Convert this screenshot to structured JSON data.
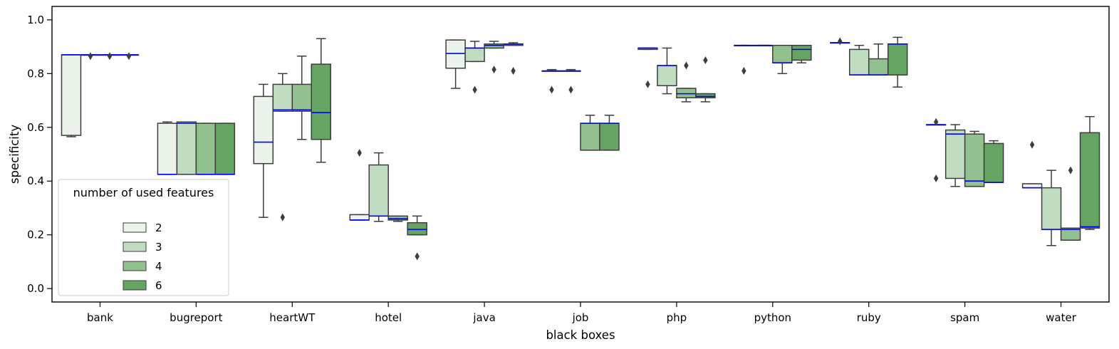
{
  "chart_data": {
    "type": "box",
    "xlabel": "black boxes",
    "ylabel": "specificity",
    "ylim": [
      -0.05,
      1.05
    ],
    "yticks": [
      0.0,
      0.2,
      0.4,
      0.6,
      0.8,
      1.0
    ],
    "ytick_labels": [
      "0.0",
      "0.2",
      "0.4",
      "0.6",
      "0.8",
      "1.0"
    ],
    "grid": false,
    "categories": [
      "bank",
      "bugreport",
      "heartWT",
      "hotel",
      "java",
      "job",
      "php",
      "python",
      "ruby",
      "spam",
      "water"
    ],
    "legend": {
      "title": "number of used features",
      "placement": "lower-left",
      "entries": [
        "2",
        "3",
        "4",
        "6"
      ]
    },
    "colors": {
      "2": "#ebf3ea",
      "3": "#c0ddc2",
      "4": "#93c08f",
      "6": "#65a463",
      "median": "#0000ff",
      "outline": "#3d3d3d"
    },
    "series": [
      {
        "name": "2",
        "boxes": [
          {
            "lw": 0.565,
            "q1": 0.57,
            "med": 0.87,
            "q3": 0.87,
            "uw": 0.87,
            "fliers": []
          },
          {
            "lw": 0.425,
            "q1": 0.425,
            "med": 0.425,
            "q3": 0.615,
            "uw": 0.62,
            "fliers": []
          },
          {
            "lw": 0.265,
            "q1": 0.465,
            "med": 0.545,
            "q3": 0.715,
            "uw": 0.76,
            "fliers": []
          },
          {
            "lw": 0.255,
            "q1": 0.255,
            "med": 0.255,
            "q3": 0.275,
            "uw": 0.275,
            "fliers": [
              0.505
            ]
          },
          {
            "lw": 0.745,
            "q1": 0.82,
            "med": 0.875,
            "q3": 0.925,
            "uw": 0.925,
            "fliers": []
          },
          {
            "lw": 0.81,
            "q1": 0.81,
            "med": 0.81,
            "q3": 0.81,
            "uw": 0.815,
            "fliers": [
              0.74
            ]
          },
          {
            "lw": 0.89,
            "q1": 0.89,
            "med": 0.895,
            "q3": 0.895,
            "uw": 0.895,
            "fliers": [
              0.76
            ]
          },
          {
            "lw": 0.905,
            "q1": 0.905,
            "med": 0.905,
            "q3": 0.905,
            "uw": 0.905,
            "fliers": [
              0.81
            ]
          },
          {
            "lw": 0.915,
            "q1": 0.915,
            "med": 0.915,
            "q3": 0.915,
            "uw": 0.915,
            "fliers": [
              0.92
            ]
          },
          {
            "lw": 0.61,
            "q1": 0.61,
            "med": 0.61,
            "q3": 0.61,
            "uw": 0.61,
            "fliers": [
              0.41,
              0.62
            ]
          },
          {
            "lw": 0.375,
            "q1": 0.375,
            "med": 0.375,
            "q3": 0.39,
            "uw": 0.39,
            "fliers": [
              0.535
            ]
          }
        ]
      },
      {
        "name": "3",
        "boxes": [
          {
            "lw": 0.87,
            "q1": 0.87,
            "med": 0.87,
            "q3": 0.87,
            "uw": 0.87,
            "fliers": [
              0.865
            ]
          },
          {
            "lw": 0.425,
            "q1": 0.425,
            "med": 0.615,
            "q3": 0.62,
            "uw": 0.62,
            "fliers": []
          },
          {
            "lw": 0.66,
            "q1": 0.66,
            "med": 0.665,
            "q3": 0.76,
            "uw": 0.8,
            "fliers": [
              0.265
            ]
          },
          {
            "lw": 0.25,
            "q1": 0.27,
            "med": 0.27,
            "q3": 0.46,
            "uw": 0.505,
            "fliers": []
          },
          {
            "lw": 0.845,
            "q1": 0.845,
            "med": 0.895,
            "q3": 0.895,
            "uw": 0.92,
            "fliers": [
              0.74
            ]
          },
          {
            "lw": 0.81,
            "q1": 0.81,
            "med": 0.81,
            "q3": 0.81,
            "uw": 0.815,
            "fliers": [
              0.74
            ]
          },
          {
            "lw": 0.725,
            "q1": 0.755,
            "med": 0.83,
            "q3": 0.83,
            "uw": 0.895,
            "fliers": []
          },
          {
            "lw": 0.905,
            "q1": 0.905,
            "med": 0.905,
            "q3": 0.905,
            "uw": 0.905,
            "fliers": []
          },
          {
            "lw": 0.795,
            "q1": 0.795,
            "med": 0.795,
            "q3": 0.89,
            "uw": 0.905,
            "fliers": []
          },
          {
            "lw": 0.38,
            "q1": 0.41,
            "med": 0.575,
            "q3": 0.59,
            "uw": 0.61,
            "fliers": []
          },
          {
            "lw": 0.16,
            "q1": 0.22,
            "med": 0.22,
            "q3": 0.375,
            "uw": 0.44,
            "fliers": []
          }
        ]
      },
      {
        "name": "4",
        "boxes": [
          {
            "lw": 0.87,
            "q1": 0.87,
            "med": 0.87,
            "q3": 0.87,
            "uw": 0.87,
            "fliers": [
              0.865
            ]
          },
          {
            "lw": 0.425,
            "q1": 0.425,
            "med": 0.425,
            "q3": 0.615,
            "uw": 0.615,
            "fliers": []
          },
          {
            "lw": 0.555,
            "q1": 0.66,
            "med": 0.665,
            "q3": 0.76,
            "uw": 0.865,
            "fliers": []
          },
          {
            "lw": 0.25,
            "q1": 0.255,
            "med": 0.26,
            "q3": 0.27,
            "uw": 0.27,
            "fliers": []
          },
          {
            "lw": 0.895,
            "q1": 0.895,
            "med": 0.905,
            "q3": 0.91,
            "uw": 0.92,
            "fliers": [
              0.815
            ]
          },
          {
            "lw": 0.515,
            "q1": 0.515,
            "med": 0.615,
            "q3": 0.615,
            "uw": 0.645,
            "fliers": []
          },
          {
            "lw": 0.695,
            "q1": 0.71,
            "med": 0.725,
            "q3": 0.745,
            "uw": 0.745,
            "fliers": [
              0.83
            ]
          },
          {
            "lw": 0.8,
            "q1": 0.84,
            "med": 0.84,
            "q3": 0.905,
            "uw": 0.905,
            "fliers": []
          },
          {
            "lw": 0.795,
            "q1": 0.795,
            "med": 0.795,
            "q3": 0.855,
            "uw": 0.91,
            "fliers": []
          },
          {
            "lw": 0.38,
            "q1": 0.38,
            "med": 0.4,
            "q3": 0.575,
            "uw": 0.585,
            "fliers": []
          },
          {
            "lw": 0.18,
            "q1": 0.18,
            "med": 0.22,
            "q3": 0.225,
            "uw": 0.225,
            "fliers": [
              0.44
            ]
          }
        ]
      },
      {
        "name": "6",
        "boxes": [
          {
            "lw": 0.87,
            "q1": 0.87,
            "med": 0.87,
            "q3": 0.87,
            "uw": 0.87,
            "fliers": [
              0.865
            ]
          },
          {
            "lw": 0.425,
            "q1": 0.425,
            "med": 0.425,
            "q3": 0.615,
            "uw": 0.615,
            "fliers": []
          },
          {
            "lw": 0.47,
            "q1": 0.555,
            "med": 0.655,
            "q3": 0.835,
            "uw": 0.93,
            "fliers": []
          },
          {
            "lw": 0.2,
            "q1": 0.2,
            "med": 0.22,
            "q3": 0.245,
            "uw": 0.27,
            "fliers": [
              0.12
            ]
          },
          {
            "lw": 0.905,
            "q1": 0.905,
            "med": 0.91,
            "q3": 0.91,
            "uw": 0.915,
            "fliers": [
              0.81
            ]
          },
          {
            "lw": 0.515,
            "q1": 0.515,
            "med": 0.615,
            "q3": 0.615,
            "uw": 0.645,
            "fliers": []
          },
          {
            "lw": 0.695,
            "q1": 0.71,
            "med": 0.715,
            "q3": 0.725,
            "uw": 0.725,
            "fliers": [
              0.85
            ]
          },
          {
            "lw": 0.84,
            "q1": 0.85,
            "med": 0.89,
            "q3": 0.905,
            "uw": 0.905,
            "fliers": []
          },
          {
            "lw": 0.75,
            "q1": 0.795,
            "med": 0.91,
            "q3": 0.91,
            "uw": 0.935,
            "fliers": []
          },
          {
            "lw": 0.395,
            "q1": 0.395,
            "med": 0.395,
            "q3": 0.54,
            "uw": 0.55,
            "fliers": []
          },
          {
            "lw": 0.22,
            "q1": 0.225,
            "med": 0.23,
            "q3": 0.58,
            "uw": 0.64,
            "fliers": []
          }
        ]
      }
    ]
  }
}
